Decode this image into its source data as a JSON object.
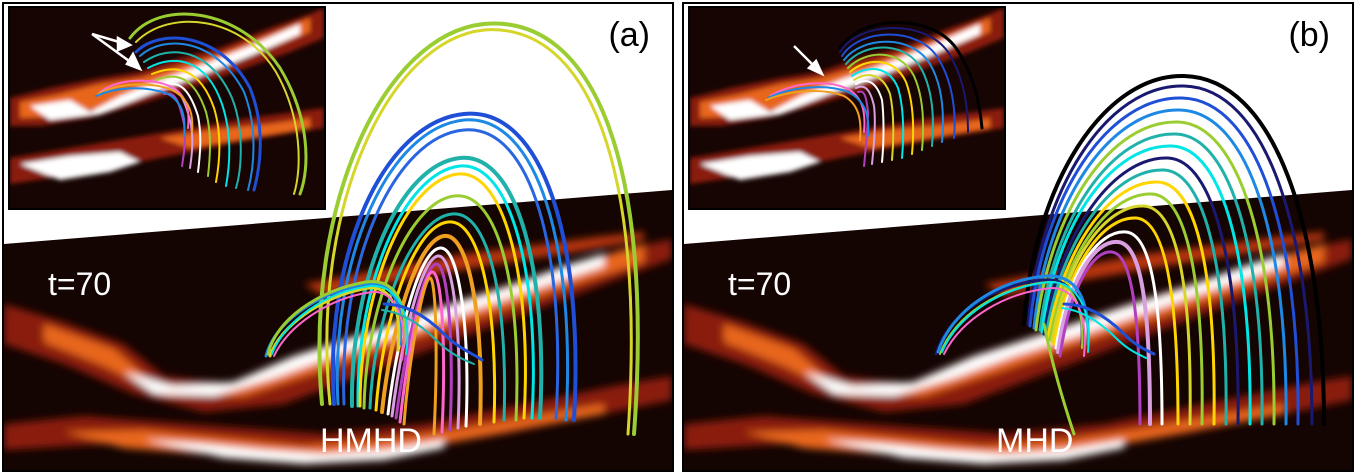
{
  "panels": [
    {
      "id": "a",
      "panel_label": "(a)",
      "time_label": "t=70",
      "model_label": "HMHD"
    },
    {
      "id": "b",
      "panel_label": "(b)",
      "time_label": "t=70",
      "model_label": "MHD"
    }
  ],
  "colors": {
    "background_dark": "#140402",
    "hot_white": "#ffffff",
    "hot_orange": "#e8661a",
    "hot_red": "#8a1c0a",
    "arrow": "#ffffff",
    "loop_palette": [
      "#9acd32",
      "#d6d62a",
      "#1f4fd6",
      "#1e88e5",
      "#20b2aa",
      "#00e5e5",
      "#ffd500",
      "#f0a020",
      "#ffffff",
      "#d8a0e0",
      "#b040c0",
      "#ff66cc",
      "#191970",
      "#000000"
    ]
  }
}
